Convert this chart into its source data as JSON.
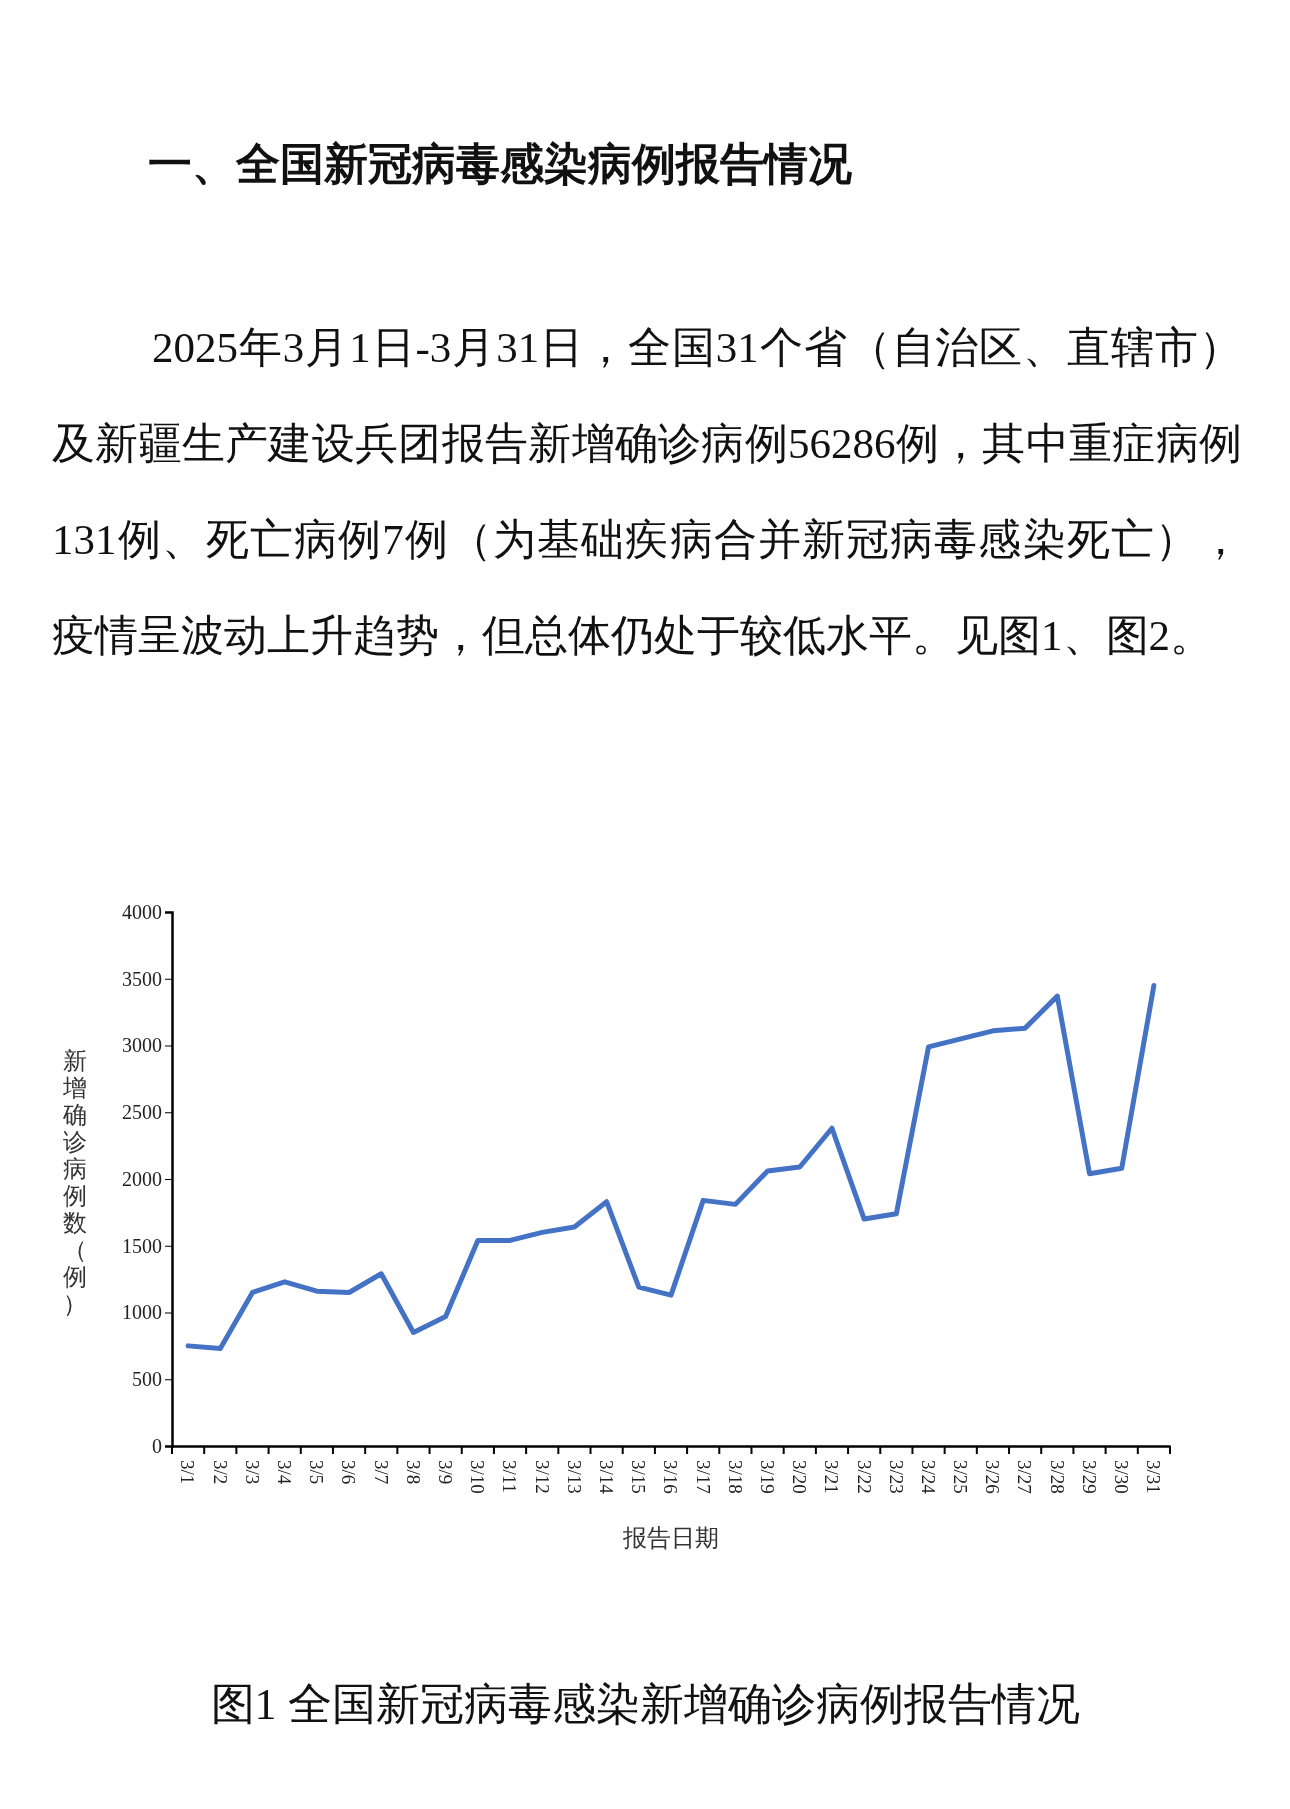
{
  "chart_data": {
    "type": "line",
    "title": "一、全国新冠病毒感染病例报告情况",
    "subtitle": "2025年3月1日-3月31日，全国31个省（自治区、直辖市）及新疆生产建设兵团报告新增确诊病例56286例，其中重症病例131例、死亡病例7例（为基础疾病合并新冠病毒感染死亡），疫情呈波动上升趋势，但总体仍处于较低水平。见图1、图2。",
    "annotations": [
      "图1  全国新冠病毒感染新增确诊病例报告情况"
    ],
    "xlabel": "报告日期",
    "ylabel": "新增确诊病例数（例）",
    "categories": [
      "3/1",
      "3/2",
      "3/3",
      "3/4",
      "3/5",
      "3/6",
      "3/7",
      "3/8",
      "3/9",
      "3/10",
      "3/11",
      "3/12",
      "3/13",
      "3/14",
      "3/15",
      "3/16",
      "3/17",
      "3/18",
      "3/19",
      "3/20",
      "3/21",
      "3/22",
      "3/23",
      "3/24",
      "3/25",
      "3/26",
      "3/27",
      "3/28",
      "3/29",
      "3/30",
      "3/31"
    ],
    "series": [
      {
        "color": "#4472c4",
        "values": [
          750,
          730,
          1150,
          1230,
          1160,
          1150,
          1290,
          850,
          970,
          1540,
          1540,
          1600,
          1640,
          1830,
          1190,
          1130,
          1840,
          1810,
          2060,
          2090,
          2380,
          1700,
          1740,
          2990,
          3050,
          3110,
          3130,
          3370,
          2040,
          2080,
          3450
        ]
      }
    ],
    "ylim": [
      0,
      4000
    ],
    "yticks": [
      0,
      500,
      1000,
      1500,
      2000,
      2500,
      3000,
      3500,
      4000
    ]
  }
}
